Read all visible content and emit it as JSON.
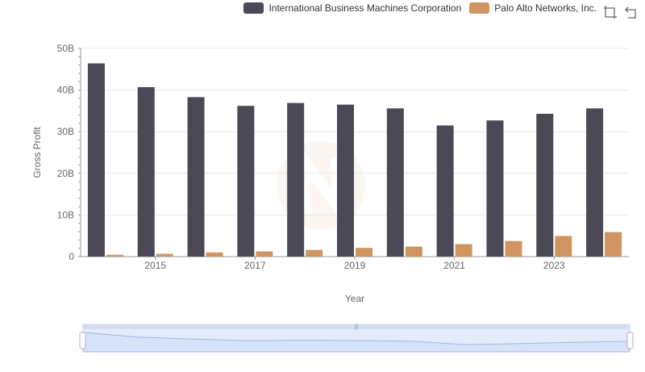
{
  "legend": {
    "items": [
      {
        "label": "International Business Machines Corporation",
        "color": "#4a4955"
      },
      {
        "label": "Palo Alto Networks, Inc.",
        "color": "#cf9460"
      }
    ]
  },
  "toolbox": {
    "zoom_icon": "zoom-icon",
    "restore_icon": "restore-icon"
  },
  "chart_data": {
    "type": "bar",
    "categories": [
      "2014",
      "2015",
      "2016",
      "2017",
      "2018",
      "2019",
      "2020",
      "2021",
      "2022",
      "2023",
      "2024"
    ],
    "x_tick_labels": [
      "2015",
      "2017",
      "2019",
      "2021",
      "2023"
    ],
    "series": [
      {
        "name": "International Business Machines Corporation",
        "color": "#4a4955",
        "values": [
          46.4,
          40.7,
          38.3,
          36.2,
          36.9,
          36.5,
          35.6,
          31.5,
          32.7,
          34.3,
          35.6
        ]
      },
      {
        "name": "Palo Alto Networks, Inc.",
        "color": "#cf9460",
        "values": [
          0.45,
          0.68,
          1.0,
          1.25,
          1.6,
          2.1,
          2.4,
          3.0,
          3.75,
          4.95,
          5.9
        ]
      }
    ],
    "xlabel": "Year",
    "ylabel": "Gross Profit",
    "y_ticks": [
      0,
      10,
      20,
      30,
      40,
      50
    ],
    "y_tick_labels": [
      "0",
      "10B",
      "20B",
      "30B",
      "40B",
      "50B"
    ],
    "ylim": [
      0,
      50
    ],
    "grid": true,
    "legend_position": "top-right",
    "datazoom": true
  }
}
